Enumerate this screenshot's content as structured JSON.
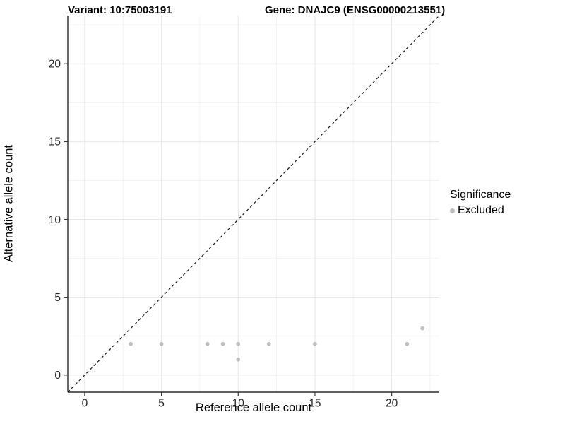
{
  "titles": {
    "variant": "Variant: 10:75003191",
    "gene": "Gene: DNAJC9 (ENSG00000213551)"
  },
  "chart_data": {
    "type": "scatter",
    "xlabel": "Reference allele count",
    "ylabel": "Alternative allele count",
    "xlim": [
      -1.1,
      23.1
    ],
    "ylim": [
      -1.1,
      23.1
    ],
    "xticks": [
      0,
      5,
      10,
      15,
      20
    ],
    "yticks": [
      0,
      5,
      10,
      15,
      20
    ],
    "xticks_minor": [
      2.5,
      7.5,
      12.5,
      17.5,
      22.5
    ],
    "yticks_minor": [
      2.5,
      7.5,
      12.5,
      17.5,
      22.5
    ],
    "grid": true,
    "series": [
      {
        "name": "Excluded",
        "color": "#BEBEBE",
        "points": [
          [
            3,
            2
          ],
          [
            5,
            2
          ],
          [
            8,
            2
          ],
          [
            9,
            2
          ],
          [
            10,
            1
          ],
          [
            10,
            2
          ],
          [
            12,
            2
          ],
          [
            15,
            2
          ],
          [
            21,
            2
          ],
          [
            22,
            3
          ]
        ]
      }
    ],
    "reference_line": {
      "kind": "identity",
      "from": -1.1,
      "to": 23.1,
      "style": "dashed",
      "color": "#1A1A1A"
    },
    "legend": {
      "position": "right",
      "title": "Significance",
      "items": [
        {
          "label": "Excluded",
          "color": "#BEBEBE"
        }
      ]
    },
    "colors": {
      "background": "#FFFFFF",
      "axis_line": "#000000",
      "tick_mark": "#333333",
      "tick_label": "#262626",
      "grid_major": "#E6E6E6",
      "grid_minor": "#F2F2F2",
      "point": "#BEBEBE"
    }
  }
}
